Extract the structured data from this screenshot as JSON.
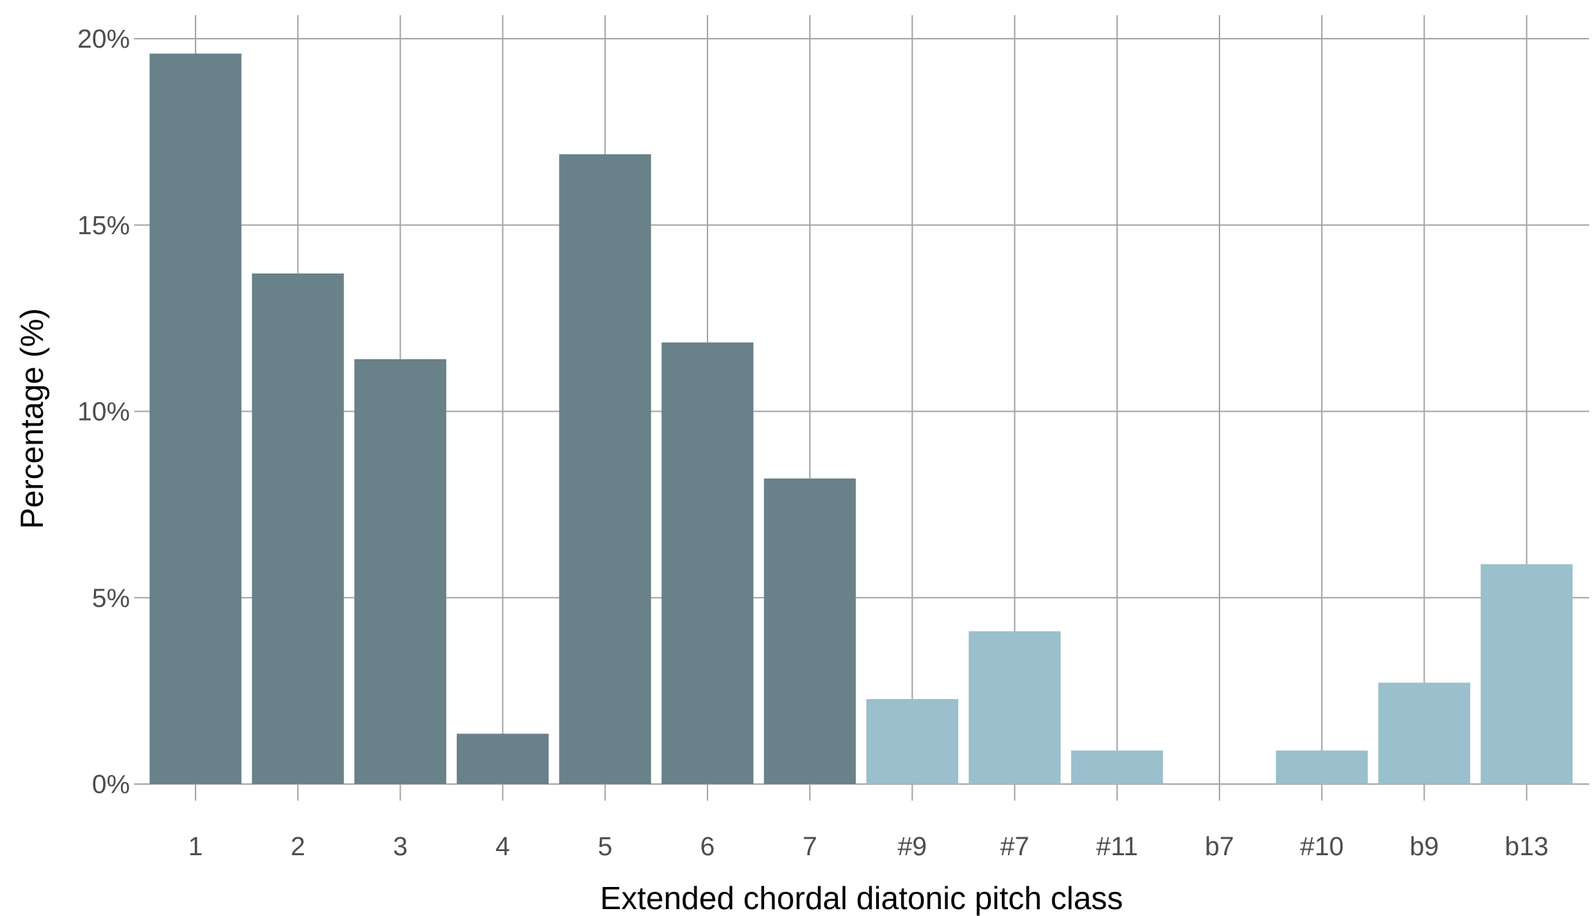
{
  "chart_data": {
    "type": "bar",
    "title": "",
    "xlabel": "Extended chordal diatonic pitch class",
    "ylabel": "Percentage (%)",
    "categories": [
      "1",
      "2",
      "3",
      "4",
      "5",
      "6",
      "7",
      "#9",
      "#7",
      "#11",
      "b7",
      "#10",
      "b9",
      "b13"
    ],
    "values": [
      19.6,
      13.7,
      11.4,
      1.35,
      16.9,
      11.85,
      8.2,
      2.28,
      4.1,
      0.9,
      0,
      0.9,
      2.72,
      5.9
    ],
    "groups": [
      "diatonic",
      "diatonic",
      "diatonic",
      "diatonic",
      "diatonic",
      "diatonic",
      "diatonic",
      "chromatic",
      "chromatic",
      "chromatic",
      "chromatic",
      "chromatic",
      "chromatic",
      "chromatic"
    ],
    "colors": {
      "diatonic": "#698189",
      "chromatic": "#9abfcd"
    },
    "yticks": [
      0,
      5,
      10,
      15,
      20
    ],
    "ytick_labels": [
      "0%",
      "5%",
      "10%",
      "15%",
      "20%"
    ],
    "ylim": [
      0,
      20.6
    ],
    "grid": true,
    "legend": "none"
  }
}
